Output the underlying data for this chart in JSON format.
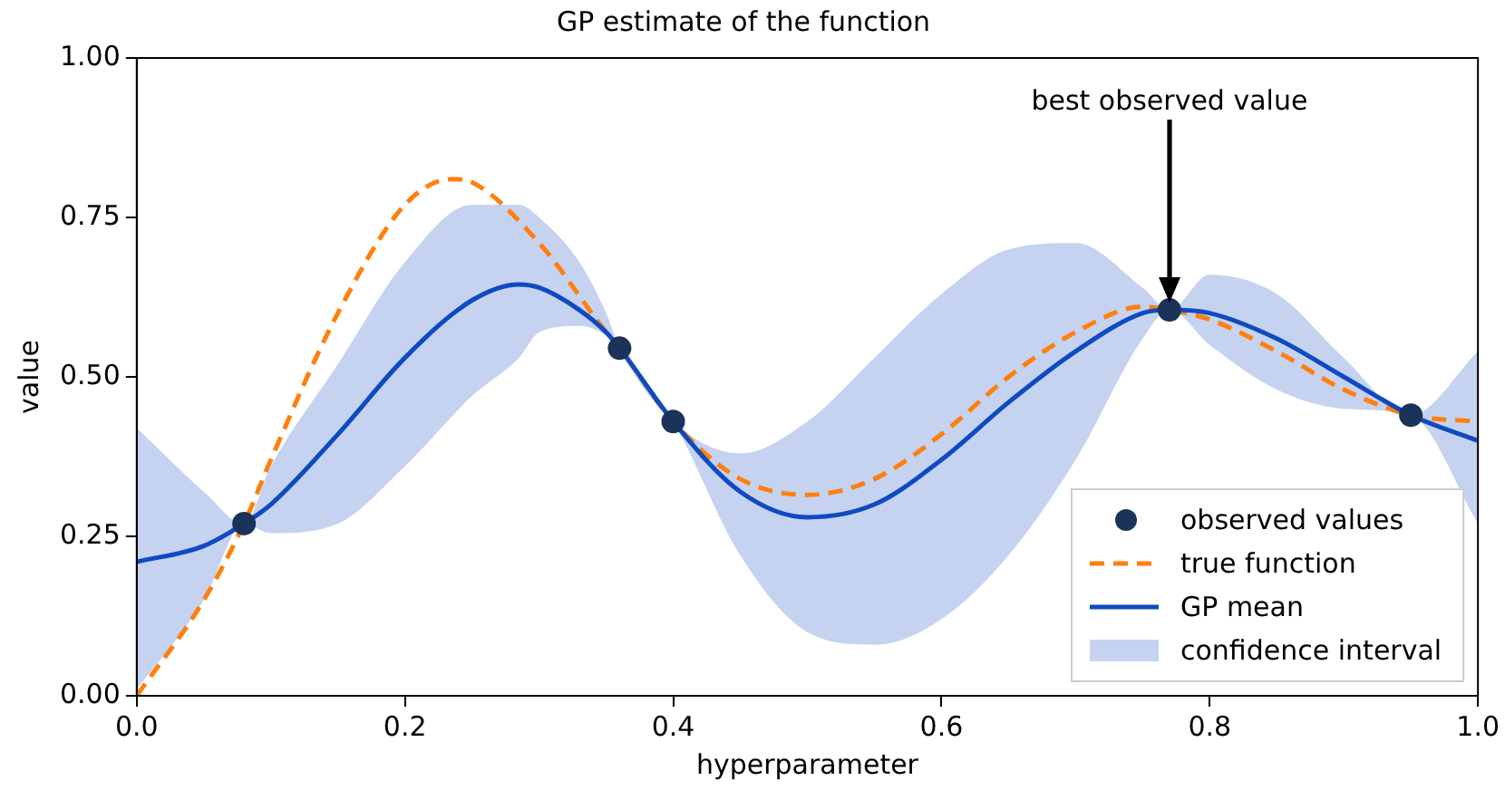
{
  "chart_data": {
    "type": "line",
    "title": "GP estimate of the function",
    "xlabel": "hyperparameter",
    "ylabel": "value",
    "xlim": [
      0,
      1
    ],
    "ylim": [
      0,
      1
    ],
    "xticks": [
      {
        "value": 0,
        "label": "0.0"
      },
      {
        "value": 0.2,
        "label": "0.2"
      },
      {
        "value": 0.4,
        "label": "0.4"
      },
      {
        "value": 0.6,
        "label": "0.6"
      },
      {
        "value": 0.8,
        "label": "0.8"
      },
      {
        "value": 1,
        "label": "1.0"
      }
    ],
    "yticks": [
      {
        "value": 0,
        "label": "0.00"
      },
      {
        "value": 0.25,
        "label": "0.25"
      },
      {
        "value": 0.5,
        "label": "0.50"
      },
      {
        "value": 0.75,
        "label": "0.75"
      },
      {
        "value": 1,
        "label": "1.00"
      }
    ],
    "grid": false,
    "legend": "bottom right",
    "annotations": [
      "best observed value",
      "confidence interval"
    ],
    "series": [
      {
        "name": "true function",
        "line_style": "dashed",
        "marker": "none",
        "color": "#ff7f0e",
        "x": [
          0,
          0.05,
          0.08,
          0.1,
          0.15,
          0.2,
          0.235,
          0.25,
          0.3,
          0.35,
          0.36,
          0.4,
          0.45,
          0.5,
          0.55,
          0.6,
          0.65,
          0.7,
          0.75,
          0.77,
          0.8,
          0.85,
          0.9,
          0.95,
          1.0
        ],
        "values": [
          0,
          0.15,
          0.27,
          0.37,
          0.6,
          0.77,
          0.81,
          0.805,
          0.71,
          0.57,
          0.545,
          0.43,
          0.34,
          0.315,
          0.34,
          0.41,
          0.5,
          0.57,
          0.61,
          0.605,
          0.59,
          0.54,
          0.48,
          0.44,
          0.43
        ]
      },
      {
        "name": "GP mean",
        "line_style": "solid",
        "marker": "none",
        "color": "#0f4ac2",
        "x": [
          0,
          0.05,
          0.08,
          0.1,
          0.15,
          0.2,
          0.25,
          0.285,
          0.3,
          0.33,
          0.35,
          0.36,
          0.4,
          0.45,
          0.5,
          0.55,
          0.6,
          0.65,
          0.7,
          0.75,
          0.77,
          0.8,
          0.85,
          0.9,
          0.95,
          1.0
        ],
        "values": [
          0.21,
          0.235,
          0.27,
          0.3,
          0.41,
          0.53,
          0.62,
          0.645,
          0.64,
          0.605,
          0.57,
          0.545,
          0.43,
          0.32,
          0.28,
          0.3,
          0.37,
          0.46,
          0.54,
          0.6,
          0.605,
          0.6,
          0.56,
          0.5,
          0.44,
          0.4
        ],
        "lower": [
          0.01,
          0.15,
          0.27,
          0.255,
          0.27,
          0.36,
          0.47,
          0.53,
          0.57,
          0.58,
          0.565,
          0.545,
          0.43,
          0.22,
          0.1,
          0.08,
          0.12,
          0.22,
          0.37,
          0.56,
          0.605,
          0.55,
          0.48,
          0.45,
          0.44,
          0.27
        ],
        "upper": [
          0.42,
          0.32,
          0.27,
          0.36,
          0.52,
          0.68,
          0.77,
          0.77,
          0.75,
          0.68,
          0.6,
          0.545,
          0.43,
          0.38,
          0.43,
          0.53,
          0.63,
          0.7,
          0.71,
          0.64,
          0.605,
          0.66,
          0.63,
          0.53,
          0.44,
          0.54
        ]
      },
      {
        "name": "observed values",
        "type": "scatter",
        "marker": "circle",
        "color": "#1b3358",
        "x": [
          0.08,
          0.36,
          0.4,
          0.77,
          0.95
        ],
        "values": [
          0.27,
          0.545,
          0.43,
          0.605,
          0.44
        ]
      }
    ]
  }
}
